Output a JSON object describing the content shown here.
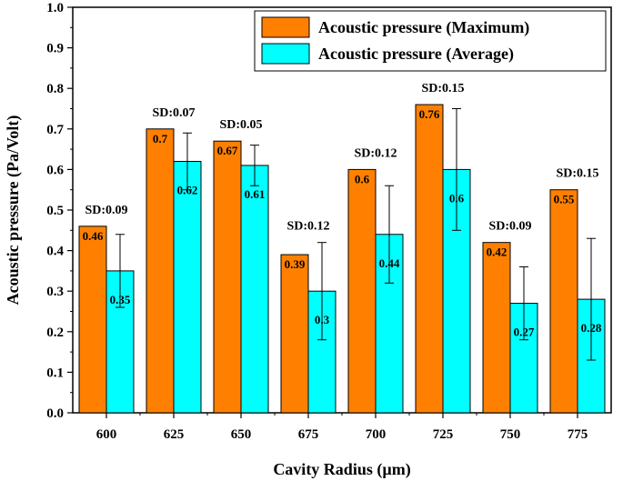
{
  "chart_data": {
    "type": "bar",
    "title": "",
    "xlabel": "Cavity Radius (µm)",
    "ylabel": "Acoustic pressure (Pa/Volt)",
    "ylim": [
      0,
      1.0
    ],
    "yticks": [
      "0.0",
      "0.1",
      "0.2",
      "0.3",
      "0.4",
      "0.5",
      "0.6",
      "0.7",
      "0.8",
      "0.9",
      "1.0"
    ],
    "categories": [
      "600",
      "625",
      "650",
      "675",
      "700",
      "725",
      "750",
      "775"
    ],
    "series": [
      {
        "name": "Acoustic pressure (Maximum)",
        "color": "#FF8000",
        "values": [
          0.46,
          0.7,
          0.67,
          0.39,
          0.6,
          0.76,
          0.42,
          0.55
        ],
        "value_labels": [
          "0.46",
          "0.7",
          "0.67",
          "0.39",
          "0.6",
          "0.76",
          "0.42",
          "0.55"
        ]
      },
      {
        "name": "Acoustic pressure (Average)",
        "color": "#00FFFF",
        "values": [
          0.35,
          0.62,
          0.61,
          0.3,
          0.44,
          0.6,
          0.27,
          0.28
        ],
        "value_labels": [
          "0.35",
          "0.62",
          "0.61",
          "0.3",
          "0.44",
          "0.6",
          "0.27",
          "0.28"
        ],
        "error": [
          0.09,
          0.07,
          0.05,
          0.12,
          0.12,
          0.15,
          0.09,
          0.15
        ]
      }
    ],
    "sd_labels": [
      "SD:0.09",
      "SD:0.07",
      "SD:0.05",
      "SD:0.12",
      "SD:0.12",
      "SD:0.15",
      "SD:0.09",
      "SD:0.15"
    ],
    "legend_position": "top-right",
    "grid": false
  }
}
